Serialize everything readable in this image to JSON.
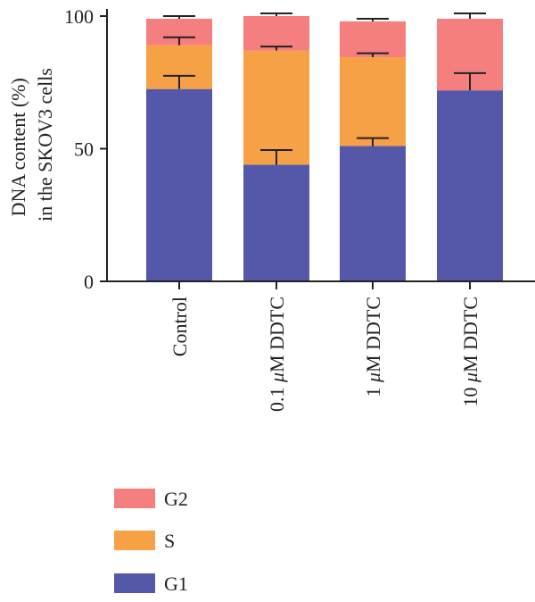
{
  "chart_data": {
    "type": "bar",
    "stacked": true,
    "categories": [
      "Control",
      "0.1 μM DDTC",
      "1 μM DDTC",
      "10 μM DDTC"
    ],
    "category_parts": [
      [
        "Control"
      ],
      [
        "0.1 ",
        "μ",
        "M DDTC"
      ],
      [
        "1 ",
        "μ",
        "M DDTC"
      ],
      [
        "10 ",
        "μ",
        "M DDTC"
      ]
    ],
    "series": [
      {
        "name": "G1",
        "values": [
          72.5,
          44,
          51,
          72
        ],
        "errors": [
          5,
          5.5,
          3,
          6.5
        ],
        "color": "#5558a8"
      },
      {
        "name": "S",
        "values": [
          16.5,
          43,
          33.5,
          0
        ],
        "errors": [
          3,
          1.5,
          1.5,
          0
        ],
        "color": "#f6a146"
      },
      {
        "name": "G2",
        "values": [
          10,
          13,
          13.5,
          27
        ],
        "errors": [
          1,
          1,
          1,
          2
        ],
        "color": "#f57f7f"
      }
    ],
    "ylabel_lines": [
      "DNA content (%)",
      "in the SKOV3 cells"
    ],
    "ylim": [
      0,
      100
    ],
    "yticks": [
      0,
      50,
      100
    ],
    "legend_order": [
      "G2",
      "S",
      "G1"
    ],
    "legend_position": "bottom-left",
    "grid": false
  }
}
